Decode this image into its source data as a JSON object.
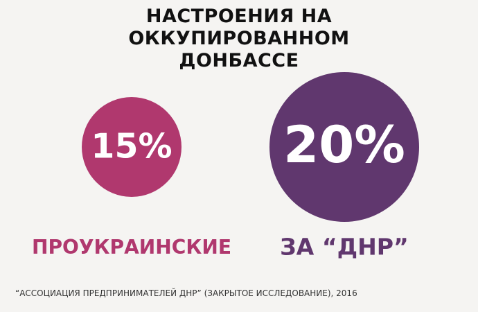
{
  "chart_data": {
    "type": "bubble",
    "title": "НАСТРОЕНИЯ НА ОККУПИРОВАННОМ ДОНБАССЕ",
    "categories": [
      "ПРОУКРАИНСКИЕ",
      "ЗА “ДНР”"
    ],
    "values": [
      15,
      20
    ],
    "value_labels": [
      "15%",
      "20%"
    ],
    "colors": [
      "#b0386e",
      "#60376e"
    ],
    "source": "“АССОЦИАЦИЯ ПРЕДПРИНИМАТЕЛЕЙ ДНР” (ЗАКРЫТОЕ ИССЛЕДОВАНИЕ), 2016"
  }
}
